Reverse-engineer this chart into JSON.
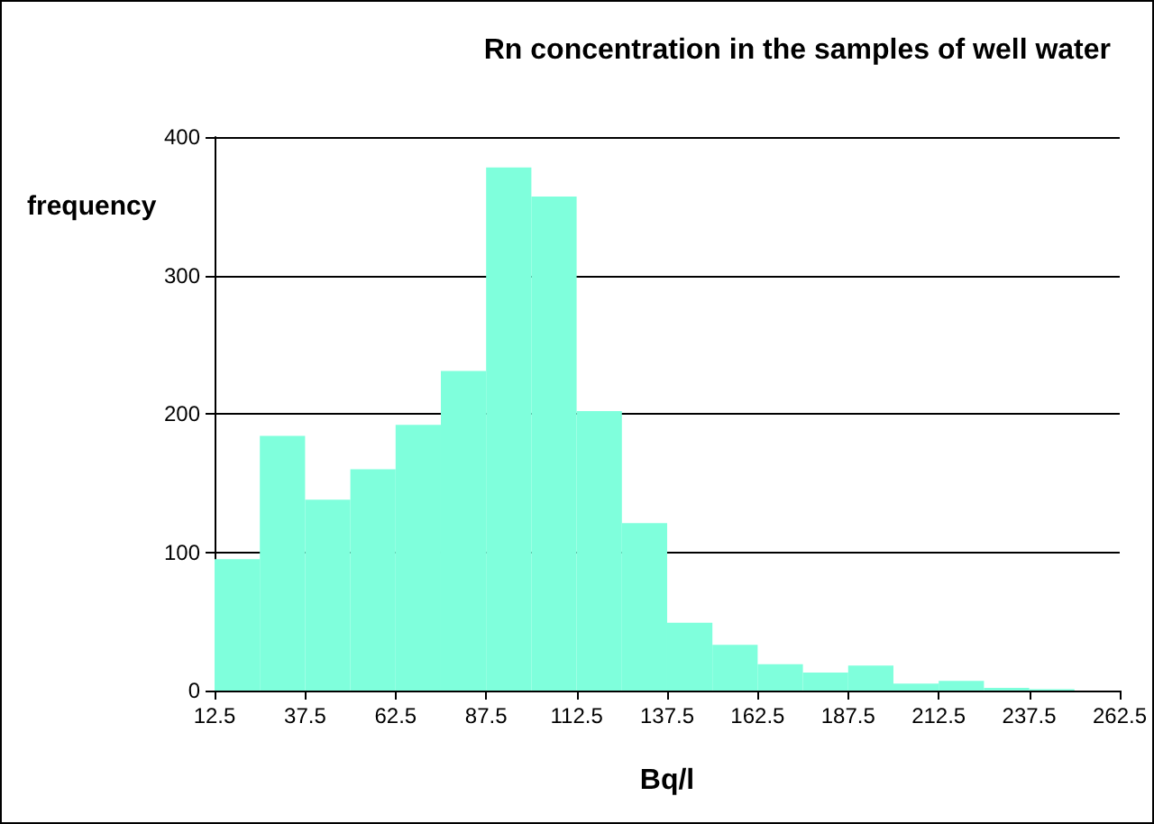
{
  "chart_data": {
    "type": "histogram",
    "title": "Rn concentration in the samples of well water",
    "xlabel": "Bq/l",
    "ylabel": "frequency",
    "bins": [
      12.5,
      25,
      37.5,
      50,
      62.5,
      75,
      87.5,
      100,
      112.5,
      125,
      137.5,
      150,
      162.5,
      175,
      187.5,
      200,
      212.5,
      225,
      237.5,
      250
    ],
    "values": [
      95,
      184,
      138,
      160,
      192,
      231,
      378,
      357,
      202,
      121,
      49,
      33,
      19,
      13,
      18,
      5,
      7,
      2,
      1
    ],
    "color": "#7fffdc",
    "xlim": [
      12.5,
      262.5
    ],
    "xticks": [
      12.5,
      37.5,
      62.5,
      87.5,
      112.5,
      137.5,
      162.5,
      187.5,
      212.5,
      237.5,
      262.5
    ],
    "ylim": [
      0,
      400
    ],
    "yticks": [
      0,
      100,
      200,
      300,
      400
    ],
    "grid": "y"
  }
}
